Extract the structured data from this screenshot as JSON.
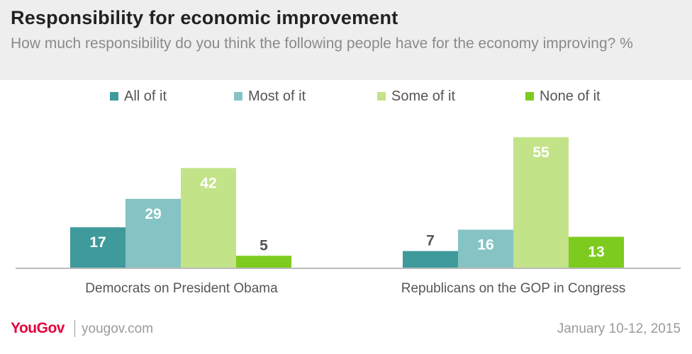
{
  "header": {
    "title": "Responsibility  for economic improvement",
    "subtitle": "How much responsibility do you think the following people have for the economy improving? %"
  },
  "footer": {
    "logo": "YouGov",
    "site": "yougov.com",
    "date": "January 10-12, 2015"
  },
  "colors": {
    "all_of_it": "#3f9a9b",
    "most_of_it": "#86c3c4",
    "some_of_it": "#c3e389",
    "none_of_it": "#7ecb20",
    "logo": "#e4003b"
  },
  "chart_data": {
    "type": "bar",
    "categories": [
      "Democrats on President Obama",
      "Republicans on the GOP in Congress"
    ],
    "series": [
      {
        "name": "All of it",
        "values": [
          17,
          7
        ]
      },
      {
        "name": "Most of it",
        "values": [
          29,
          16
        ]
      },
      {
        "name": "Some of it",
        "values": [
          42,
          55
        ]
      },
      {
        "name": "None of it",
        "values": [
          5,
          13
        ]
      }
    ],
    "legend_position": "top",
    "grid": false,
    "ylim": [
      0,
      60
    ]
  }
}
